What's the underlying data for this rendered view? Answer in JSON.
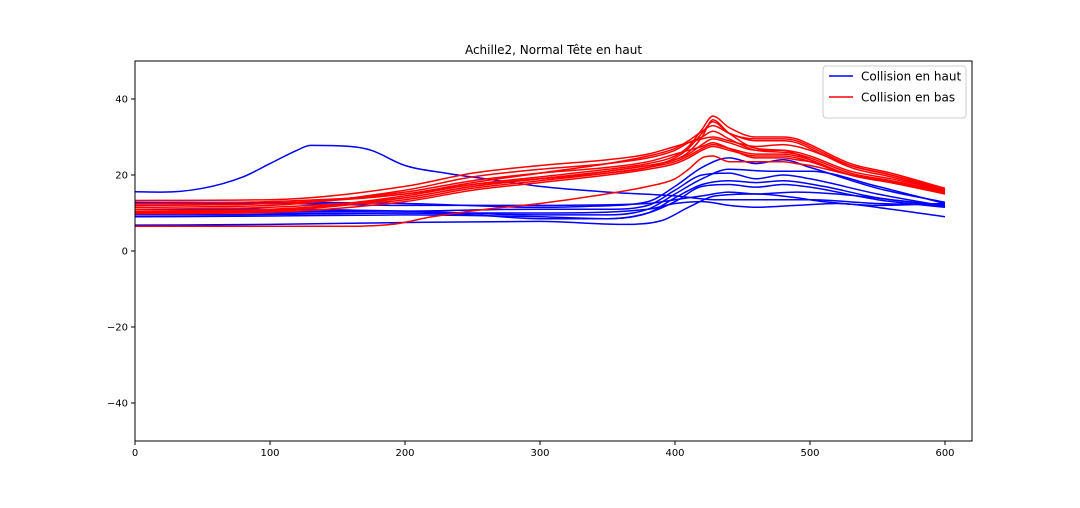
{
  "chart_data": {
    "type": "line",
    "title": "Achille2, Normal Tête en haut",
    "xlabel": "",
    "ylabel": "",
    "xlim": [
      0,
      620
    ],
    "ylim": [
      -50,
      50
    ],
    "x_ticks": [
      0,
      100,
      200,
      300,
      400,
      500,
      600
    ],
    "y_ticks": [
      -40,
      -20,
      0,
      20,
      40
    ],
    "grid": false,
    "legend": {
      "placement": "top-right",
      "entries": [
        {
          "label": "Collision en haut",
          "color": "#0000ff"
        },
        {
          "label": "Collision en bas",
          "color": "#ff0000"
        }
      ]
    },
    "series": [
      {
        "group": "Collision en haut",
        "color": "#0000ff",
        "x": [
          0,
          20,
          50,
          80,
          100,
          120,
          130,
          160,
          175,
          200,
          230,
          270,
          300,
          350,
          400,
          430,
          450,
          480,
          500,
          550,
          600
        ],
        "y": [
          15.6,
          15.5,
          16.5,
          19.5,
          23,
          26.5,
          27.8,
          27.5,
          26.5,
          22.5,
          20.5,
          18.5,
          17,
          15.5,
          14.5,
          13.5,
          13.5,
          13.5,
          13.5,
          12.5,
          12.2
        ]
      },
      {
        "group": "Collision en haut",
        "color": "#0000ff",
        "x": [
          0,
          100,
          200,
          250,
          300,
          350,
          380,
          400,
          420,
          440,
          460,
          480,
          500,
          550,
          600
        ],
        "y": [
          9.5,
          9.6,
          10,
          9.5,
          8.5,
          8.5,
          10,
          13,
          17,
          17.5,
          16.8,
          17.5,
          16.8,
          13.5,
          11.5
        ]
      },
      {
        "group": "Collision en haut",
        "color": "#0000ff",
        "x": [
          0,
          100,
          200,
          300,
          350,
          380,
          400,
          420,
          440,
          460,
          480,
          500,
          550,
          600
        ],
        "y": [
          10.4,
          10.4,
          10.5,
          11,
          11,
          12,
          16,
          20,
          20.5,
          19,
          20,
          19,
          15,
          11.8
        ]
      },
      {
        "group": "Collision en haut",
        "color": "#0000ff",
        "x": [
          0,
          100,
          200,
          300,
          340,
          380,
          400,
          420,
          440,
          460,
          480,
          500,
          550,
          600
        ],
        "y": [
          12.8,
          12.8,
          12.5,
          11.5,
          11.8,
          13,
          17,
          22,
          24.5,
          23,
          24,
          22,
          16.5,
          12.8
        ]
      },
      {
        "group": "Collision en haut",
        "color": "#0000ff",
        "x": [
          0,
          100,
          200,
          300,
          360,
          390,
          410,
          430,
          460,
          490,
          510,
          550,
          600
        ],
        "y": [
          6.8,
          7,
          7.5,
          7.8,
          7,
          8,
          11.5,
          14.5,
          15,
          14,
          13,
          12,
          12.5
        ]
      },
      {
        "group": "Collision en haut",
        "color": "#0000ff",
        "x": [
          0,
          100,
          200,
          300,
          350,
          380,
          400,
          420,
          440,
          470,
          500,
          550,
          600
        ],
        "y": [
          11,
          11,
          10.5,
          9.5,
          9.5,
          11,
          15,
          19,
          21.5,
          21,
          21,
          17,
          12.5
        ]
      },
      {
        "group": "Collision en haut",
        "color": "#0000ff",
        "x": [
          0,
          100,
          200,
          300,
          350,
          380,
          400,
          420,
          440,
          460,
          480,
          510,
          550,
          600
        ],
        "y": [
          9,
          9.2,
          9.5,
          9,
          8.5,
          10,
          14,
          17.5,
          18.5,
          18,
          18.5,
          17,
          14,
          11.8
        ]
      },
      {
        "group": "Collision en haut",
        "color": "#0000ff",
        "x": [
          0,
          100,
          200,
          300,
          380,
          400,
          420,
          440,
          460,
          490,
          520,
          560,
          600
        ],
        "y": [
          10,
          10,
          10,
          10,
          11,
          12.5,
          13,
          12,
          11.5,
          12,
          12.5,
          11,
          9
        ]
      },
      {
        "group": "Collision en haut",
        "color": "#0000ff",
        "x": [
          0,
          100,
          200,
          300,
          380,
          400,
          420,
          440,
          460,
          490,
          520,
          560,
          600
        ],
        "y": [
          12.5,
          12.5,
          12,
          12,
          12.5,
          13.5,
          14.5,
          15.5,
          15,
          15.5,
          15,
          13.5,
          12
        ]
      },
      {
        "group": "Collision en bas",
        "color": "#ff0000",
        "x": [
          0,
          100,
          200,
          250,
          300,
          350,
          380,
          400,
          410,
          420,
          428,
          440,
          460,
          480,
          490,
          500,
          530,
          560,
          600
        ],
        "y": [
          10,
          10.5,
          14,
          17,
          19,
          21,
          22.5,
          24,
          26,
          30,
          34.5,
          31,
          27,
          26.5,
          25.5,
          24,
          20,
          18,
          15.5
        ]
      },
      {
        "group": "Collision en bas",
        "color": "#ff0000",
        "x": [
          0,
          100,
          200,
          250,
          300,
          350,
          380,
          400,
          410,
          420,
          428,
          440,
          460,
          480,
          490,
          500,
          530,
          560,
          600
        ],
        "y": [
          10.2,
          10.8,
          14.5,
          17.5,
          19.5,
          21.5,
          23,
          25,
          27.5,
          32,
          35.5,
          32.5,
          30,
          30,
          29.5,
          28,
          23,
          20.5,
          16.5
        ]
      },
      {
        "group": "Collision en bas",
        "color": "#ff0000",
        "x": [
          0,
          100,
          200,
          250,
          300,
          350,
          380,
          400,
          410,
          420,
          428,
          440,
          460,
          480,
          490,
          500,
          530,
          560,
          600
        ],
        "y": [
          12.5,
          13,
          15,
          17.5,
          19,
          20.5,
          22,
          24.5,
          27,
          31,
          34,
          31,
          29.5,
          29.5,
          29,
          27.5,
          22.5,
          20,
          16
        ]
      },
      {
        "group": "Collision en bas",
        "color": "#ff0000",
        "x": [
          0,
          100,
          200,
          250,
          300,
          350,
          380,
          400,
          410,
          420,
          428,
          440,
          460,
          480,
          490,
          500,
          530,
          560,
          600
        ],
        "y": [
          11,
          11.5,
          14,
          17,
          19,
          21,
          22.5,
          24,
          25.5,
          28,
          29.5,
          28.5,
          26.5,
          26.5,
          26,
          25,
          21,
          19,
          15.8
        ]
      },
      {
        "group": "Collision en bas",
        "color": "#ff0000",
        "x": [
          0,
          100,
          200,
          250,
          300,
          350,
          380,
          400,
          410,
          420,
          428,
          440,
          460,
          480,
          490,
          500,
          530,
          560,
          600
        ],
        "y": [
          10.5,
          11,
          13.5,
          16.5,
          18.5,
          20.5,
          22,
          23.5,
          25,
          27,
          28,
          27,
          25.5,
          25.5,
          25,
          24,
          20,
          18.5,
          15.5
        ]
      },
      {
        "group": "Collision en bas",
        "color": "#ff0000",
        "x": [
          0,
          100,
          200,
          250,
          300,
          350,
          380,
          400,
          410,
          420,
          428,
          440,
          460,
          480,
          490,
          500,
          530,
          560,
          600
        ],
        "y": [
          11.5,
          12,
          16,
          19.5,
          21.5,
          23,
          24.5,
          26.5,
          28.5,
          30,
          31.5,
          29.5,
          26.5,
          26,
          25.5,
          24.5,
          20.5,
          18.5,
          15.5
        ]
      },
      {
        "group": "Collision en bas",
        "color": "#ff0000",
        "x": [
          0,
          100,
          200,
          250,
          300,
          350,
          380,
          400,
          410,
          420,
          428,
          440,
          460,
          480,
          490,
          500,
          530,
          560,
          600
        ],
        "y": [
          12,
          12.5,
          15.5,
          18.5,
          20.5,
          22,
          23.5,
          25.5,
          26.5,
          27.5,
          28.5,
          27,
          24.5,
          24.5,
          24,
          23.5,
          20,
          18,
          15.3
        ]
      },
      {
        "group": "Collision en bas",
        "color": "#ff0000",
        "x": [
          0,
          100,
          200,
          250,
          300,
          350,
          380,
          400,
          410,
          420,
          428,
          440,
          460,
          480,
          490,
          500,
          530,
          560,
          600
        ],
        "y": [
          13.3,
          13.5,
          17,
          20.5,
          22.5,
          24,
          25.5,
          27.5,
          28.5,
          29.5,
          30,
          29,
          27.5,
          28,
          27.5,
          26.5,
          22.5,
          20,
          16.3
        ]
      },
      {
        "group": "Collision en bas",
        "color": "#ff0000",
        "x": [
          0,
          100,
          150,
          190,
          220,
          260,
          300,
          340,
          380,
          400,
          410,
          420,
          428,
          440,
          460,
          480,
          490,
          500,
          530,
          560,
          600
        ],
        "y": [
          6.5,
          6.5,
          6.5,
          7,
          9,
          11,
          12.5,
          14.5,
          17,
          19,
          21.5,
          24.5,
          25,
          23.5,
          23.5,
          23.5,
          23,
          22.5,
          20,
          18,
          15
        ]
      },
      {
        "group": "Collision en bas",
        "color": "#ff0000",
        "x": [
          0,
          100,
          200,
          250,
          300,
          350,
          380,
          400,
          410,
          420,
          428,
          440,
          460,
          480,
          490,
          500,
          530,
          560,
          600
        ],
        "y": [
          9.8,
          10.2,
          13,
          16,
          18,
          20,
          21.5,
          23,
          24.5,
          26.5,
          27.5,
          26.5,
          25,
          25,
          24.5,
          23.5,
          20,
          18.3,
          15.3
        ]
      },
      {
        "group": "Collision en bas",
        "color": "#ff0000",
        "x": [
          0,
          100,
          200,
          250,
          300,
          350,
          380,
          400,
          410,
          420,
          428,
          440,
          460,
          480,
          490,
          500,
          530,
          560,
          600
        ],
        "y": [
          12,
          12.5,
          15,
          18,
          20.5,
          23,
          25,
          27,
          29,
          31.5,
          33,
          31,
          29,
          29,
          28.5,
          27,
          22,
          19.5,
          16
        ]
      }
    ]
  }
}
